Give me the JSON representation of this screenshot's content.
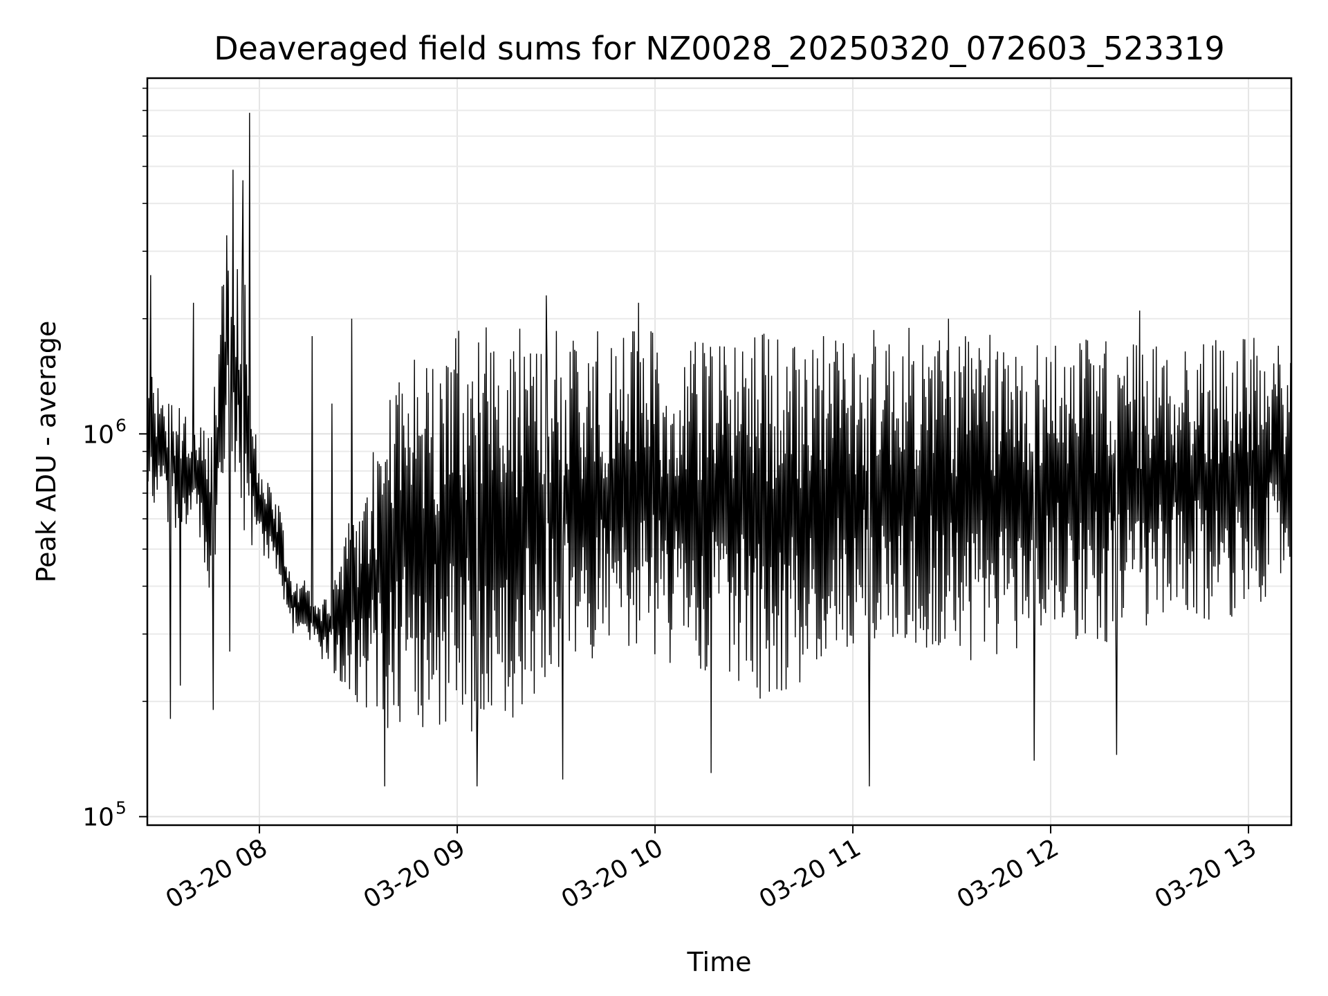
{
  "chart_data": {
    "type": "line",
    "title": "Deaveraged field sums for NZ0028_20250320_072603_523319",
    "xlabel": "Time",
    "ylabel": "Peak ADU - average",
    "yscale": "log",
    "ylim": [
      95000,
      8500000
    ],
    "xlim": [
      "2025-03-20T07:26:00",
      "2025-03-20T13:13:00"
    ],
    "x_ticks": [
      "03-20 08",
      "03-20 09",
      "03-20 10",
      "03-20 11",
      "03-20 12",
      "03-20 13"
    ],
    "y_ticks": [
      {
        "base": "10",
        "exp": "5"
      },
      {
        "base": "10",
        "exp": "6"
      }
    ],
    "grid": true,
    "line_color": "#000000",
    "series": [
      {
        "x": [
          "2025-03-20T07:26",
          "2025-03-20T07:30",
          "2025-03-20T07:35",
          "2025-03-20T07:40",
          "2025-03-20T07:45",
          "2025-03-20T07:50",
          "2025-03-20T07:55",
          "2025-03-20T08:00",
          "2025-03-20T08:05",
          "2025-03-20T08:10",
          "2025-03-20T08:20",
          "2025-03-20T08:30",
          "2025-03-20T08:40",
          "2025-03-20T08:50",
          "2025-03-20T09:00",
          "2025-03-20T09:15",
          "2025-03-20T09:30",
          "2025-03-20T09:45",
          "2025-03-20T10:00",
          "2025-03-20T10:15",
          "2025-03-20T10:30",
          "2025-03-20T10:45",
          "2025-03-20T11:00",
          "2025-03-20T11:15",
          "2025-03-20T11:30",
          "2025-03-20T11:45",
          "2025-03-20T12:00",
          "2025-03-20T12:15",
          "2025-03-20T12:30",
          "2025-03-20T12:45",
          "2025-03-20T13:00",
          "2025-03-20T13:13"
        ],
        "low": [
          700000,
          600000,
          550000,
          600000,
          380000,
          800000,
          500000,
          500000,
          400000,
          300000,
          250000,
          190000,
          160000,
          170000,
          165000,
          170000,
          240000,
          250000,
          260000,
          220000,
          200000,
          220000,
          260000,
          280000,
          250000,
          250000,
          300000,
          280000,
          300000,
          300000,
          350000,
          400000
        ],
        "high": [
          1500000,
          1300000,
          1200000,
          1100000,
          1000000,
          3500000,
          3000000,
          800000,
          700000,
          450000,
          380000,
          700000,
          1500000,
          1700000,
          1900000,
          1900000,
          1900000,
          1900000,
          1850000,
          1800000,
          1850000,
          1850000,
          1900000,
          1900000,
          1900000,
          1800000,
          1800000,
          1800000,
          1750000,
          1800000,
          1800000,
          1700000
        ],
        "spikes": [
          {
            "x": "2025-03-20T07:27",
            "y": 2600000
          },
          {
            "x": "2025-03-20T07:40",
            "y": 2200000
          },
          {
            "x": "2025-03-20T07:33",
            "y": 180000
          },
          {
            "x": "2025-03-20T07:36",
            "y": 220000
          },
          {
            "x": "2025-03-20T07:46",
            "y": 190000
          },
          {
            "x": "2025-03-20T07:51",
            "y": 3800000
          },
          {
            "x": "2025-03-20T07:52",
            "y": 4900000
          },
          {
            "x": "2025-03-20T07:55",
            "y": 4600000
          },
          {
            "x": "2025-03-20T07:57",
            "y": 6900000
          },
          {
            "x": "2025-03-20T07:51",
            "y": 270000
          },
          {
            "x": "2025-03-20T08:16",
            "y": 1800000
          },
          {
            "x": "2025-03-20T08:22",
            "y": 1200000
          },
          {
            "x": "2025-03-20T08:28",
            "y": 2000000
          },
          {
            "x": "2025-03-20T08:38",
            "y": 120000
          },
          {
            "x": "2025-03-20T09:06",
            "y": 120000
          },
          {
            "x": "2025-03-20T09:27",
            "y": 2300000
          },
          {
            "x": "2025-03-20T09:32",
            "y": 125000
          },
          {
            "x": "2025-03-20T09:55",
            "y": 2200000
          },
          {
            "x": "2025-03-20T10:17",
            "y": 130000
          },
          {
            "x": "2025-03-20T11:05",
            "y": 120000
          },
          {
            "x": "2025-03-20T11:55",
            "y": 140000
          },
          {
            "x": "2025-03-20T12:20",
            "y": 145000
          },
          {
            "x": "2025-03-20T11:29",
            "y": 2000000
          },
          {
            "x": "2025-03-20T12:27",
            "y": 2100000
          }
        ]
      }
    ]
  }
}
